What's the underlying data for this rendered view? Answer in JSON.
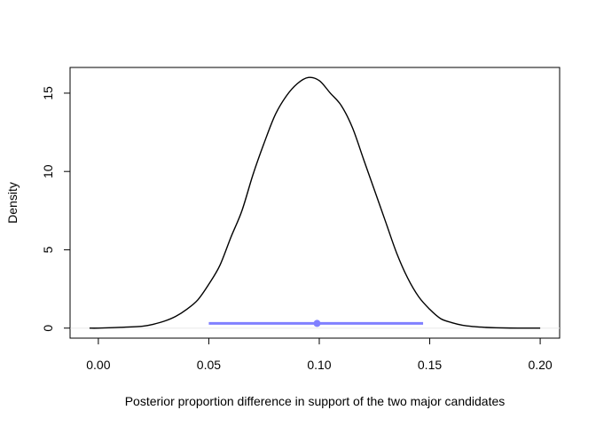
{
  "chart_data": {
    "type": "line",
    "title": "",
    "xlabel": "Posterior proportion difference in support of the two major candidates",
    "ylabel": "Density",
    "xlim": [
      -0.0128,
      0.2088
    ],
    "ylim": [
      -0.64,
      16.64
    ],
    "x_ticks": [
      0.0,
      0.05,
      0.1,
      0.15,
      0.2
    ],
    "x_tick_labels": [
      "0.00",
      "0.05",
      "0.10",
      "0.15",
      "0.20"
    ],
    "y_ticks": [
      0,
      5,
      10,
      15
    ],
    "y_tick_labels": [
      "0",
      "5",
      "10",
      "15"
    ],
    "grid": false,
    "legend": "none",
    "series": [
      {
        "type": "density",
        "color": "#000000",
        "x": [
          -0.004,
          0.0,
          0.01,
          0.02,
          0.025,
          0.03,
          0.035,
          0.04,
          0.045,
          0.05,
          0.055,
          0.06,
          0.065,
          0.07,
          0.075,
          0.08,
          0.085,
          0.09,
          0.095,
          0.1,
          0.105,
          0.11,
          0.115,
          0.12,
          0.125,
          0.13,
          0.135,
          0.14,
          0.145,
          0.15,
          0.155,
          0.16,
          0.165,
          0.17,
          0.175,
          0.18,
          0.19,
          0.2
        ],
        "y": [
          0.0,
          0.0,
          0.05,
          0.12,
          0.25,
          0.45,
          0.75,
          1.2,
          1.8,
          2.8,
          4.0,
          5.8,
          7.5,
          9.8,
          11.8,
          13.6,
          14.8,
          15.6,
          16.0,
          15.8,
          15.0,
          14.2,
          12.8,
          10.8,
          8.8,
          6.8,
          4.8,
          3.2,
          2.0,
          1.2,
          0.6,
          0.35,
          0.18,
          0.1,
          0.05,
          0.02,
          0.0,
          0.0
        ]
      },
      {
        "type": "interval",
        "color": "#8080ff",
        "lower": 0.05,
        "point": 0.099,
        "upper": 0.147,
        "y": 0.3
      }
    ]
  }
}
